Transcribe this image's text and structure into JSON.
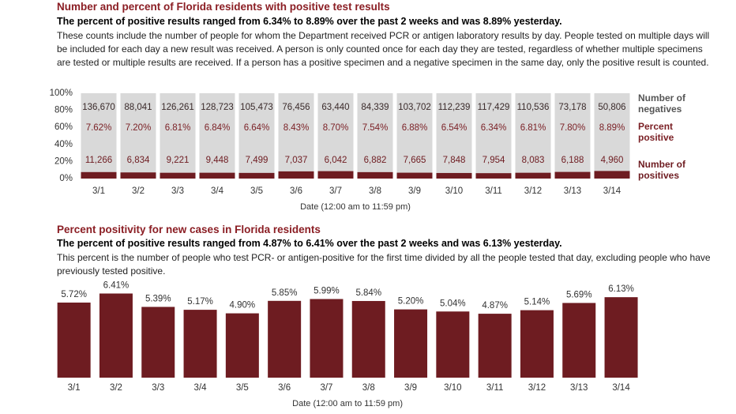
{
  "chart_data": [
    {
      "type": "stacked_percent_bar",
      "title": "Number and percent of Florida residents with positive test results",
      "subtitle": "The percent of positive results ranged from 6.34% to 8.89% over the past 2 weeks and was 8.89% yesterday.",
      "description": "These counts include the number of people for whom the Department received PCR or antigen laboratory results by day. People tested on multiple days will be included for each day a new result was received. A person is only counted once for each day they are tested, regardless of whether multiple specimens are tested or multiple results are received. If a person has a positive specimen and a negative specimen in the same day, only the positive result is counted.",
      "xlabel": "Date (12:00 am to 11:59 pm)",
      "categories": [
        "3/1",
        "3/2",
        "3/3",
        "3/4",
        "3/5",
        "3/6",
        "3/7",
        "3/8",
        "3/9",
        "3/10",
        "3/11",
        "3/12",
        "3/13",
        "3/14"
      ],
      "series": [
        {
          "name": "Number of negatives",
          "color": "#d9d9d9",
          "values": [
            136670,
            88041,
            126261,
            128723,
            105473,
            76456,
            63440,
            84339,
            103702,
            112239,
            117429,
            110536,
            73178,
            50806
          ],
          "value_labels": [
            "136,670",
            "88,041",
            "126,261",
            "128,723",
            "105,473",
            "76,456",
            "63,440",
            "84,339",
            "103,702",
            "112,239",
            "117,429",
            "110,536",
            "73,178",
            "50,806"
          ]
        },
        {
          "name": "Number of positives",
          "color": "#6e1c21",
          "values": [
            11266,
            6834,
            9221,
            9448,
            7499,
            7037,
            6042,
            6882,
            7665,
            7848,
            7954,
            8083,
            6188,
            4960
          ],
          "value_labels": [
            "11,266",
            "6,834",
            "9,221",
            "9,448",
            "7,499",
            "7,037",
            "6,042",
            "6,882",
            "7,665",
            "7,848",
            "7,954",
            "8,083",
            "6,188",
            "4,960"
          ]
        }
      ],
      "percent_positive": {
        "name": "Percent positive",
        "color": "#7a1f24",
        "values": [
          7.62,
          7.2,
          6.81,
          6.84,
          6.64,
          8.43,
          8.7,
          7.54,
          6.88,
          6.54,
          6.34,
          6.81,
          7.8,
          8.89
        ],
        "value_labels": [
          "7.62%",
          "7.20%",
          "6.81%",
          "6.84%",
          "6.64%",
          "8.43%",
          "8.70%",
          "7.54%",
          "6.88%",
          "6.54%",
          "6.34%",
          "6.81%",
          "7.80%",
          "8.89%"
        ]
      },
      "ylim": [
        0,
        100
      ],
      "yticks": [
        {
          "value": 0,
          "label": "0%"
        },
        {
          "value": 20,
          "label": "20%"
        },
        {
          "value": 40,
          "label": "40%"
        },
        {
          "value": 60,
          "label": "60%"
        },
        {
          "value": 80,
          "label": "80%"
        },
        {
          "value": 100,
          "label": "100%"
        }
      ]
    },
    {
      "type": "bar",
      "title": "Percent positivity for new cases in Florida residents",
      "subtitle": "The percent of positive results ranged from 4.87% to 6.41% over the past 2 weeks and was 6.13% yesterday.",
      "description": "This percent is the number of people who test PCR- or antigen-positive for the first time divided by all the people tested that day, excluding people who have previously tested positive.",
      "xlabel": "Date (12:00 am to 11:59 pm)",
      "categories": [
        "3/1",
        "3/2",
        "3/3",
        "3/4",
        "3/5",
        "3/6",
        "3/7",
        "3/8",
        "3/9",
        "3/10",
        "3/11",
        "3/12",
        "3/13",
        "3/14"
      ],
      "values": [
        5.72,
        6.41,
        5.39,
        5.17,
        4.9,
        5.85,
        5.99,
        5.84,
        5.2,
        5.04,
        4.87,
        5.14,
        5.69,
        6.13
      ],
      "value_labels": [
        "5.72%",
        "6.41%",
        "5.39%",
        "5.17%",
        "4.90%",
        "5.85%",
        "5.99%",
        "5.84%",
        "5.20%",
        "5.04%",
        "4.87%",
        "5.14%",
        "5.69%",
        "6.13%"
      ],
      "color": "#6e1c21",
      "ylim": [
        0,
        6.5
      ]
    }
  ]
}
